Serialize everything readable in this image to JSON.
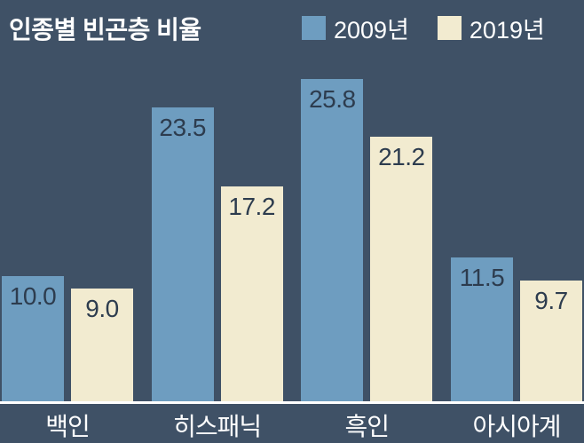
{
  "chart_data": {
    "type": "bar",
    "title": "인종별 빈곤층 비율",
    "categories": [
      "백인",
      "히스패닉",
      "흑인",
      "아시아계"
    ],
    "series": [
      {
        "name": "2009년",
        "color": "#6e9dc0",
        "values": [
          10.0,
          23.5,
          25.8,
          11.5
        ]
      },
      {
        "name": "2019년",
        "color": "#f2ebd0",
        "values": [
          9.0,
          17.2,
          21.2,
          9.7
        ]
      }
    ],
    "ylim": [
      0,
      28
    ],
    "value_labels": true,
    "legend_position": "top",
    "grid": false
  },
  "colors": {
    "background": "#3f5166",
    "bar_value_label": "#2d3c4e",
    "category_label": "#ffffff",
    "baseline": "#ffffff"
  }
}
